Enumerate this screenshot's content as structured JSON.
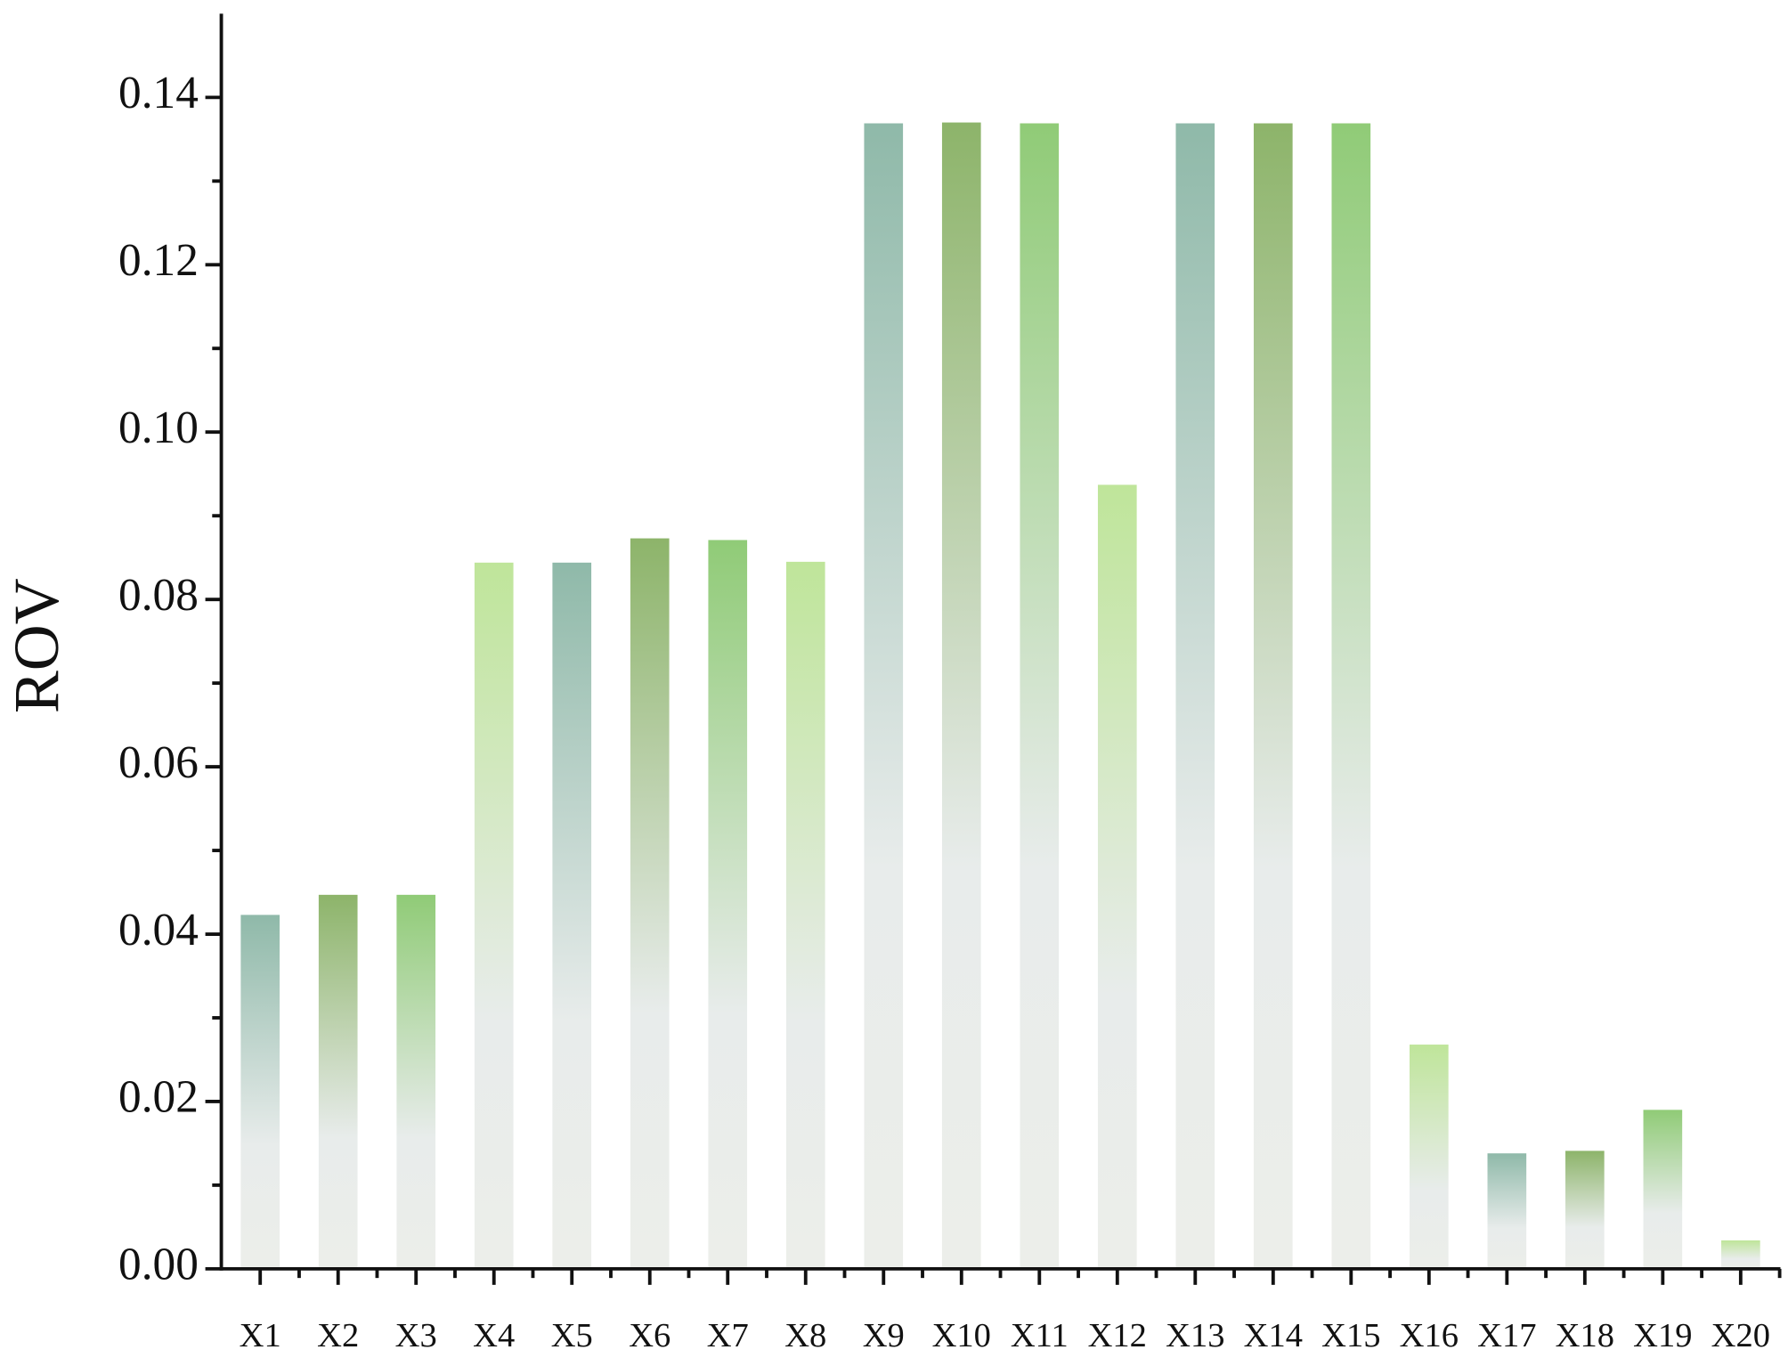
{
  "chart_data": {
    "type": "bar",
    "y_label": "ROV",
    "categories": [
      "X1",
      "X2",
      "X3",
      "X4",
      "X5",
      "X6",
      "X7",
      "X8",
      "X9",
      "X10",
      "X11",
      "X12",
      "X13",
      "X14",
      "X15",
      "X16",
      "X17",
      "X18",
      "X19",
      "X20"
    ],
    "values": [
      0.0423,
      0.0447,
      0.0447,
      0.0844,
      0.0844,
      0.0873,
      0.0871,
      0.0845,
      0.1369,
      0.137,
      0.1369,
      0.0937,
      0.1369,
      0.1369,
      0.1369,
      0.0268,
      0.0138,
      0.0141,
      0.019,
      0.0034
    ],
    "colors": [
      "#8fb9a9",
      "#8db46a",
      "#90cb77",
      "#bfe59a"
    ],
    "ylim": [
      0,
      0.15
    ],
    "yticks": [
      {
        "value": 0,
        "label": "0.00"
      },
      {
        "value": 0.02,
        "label": "0.02"
      },
      {
        "value": 0.04,
        "label": "0.04"
      },
      {
        "value": 0.06,
        "label": "0.06"
      },
      {
        "value": 0.08,
        "label": "0.08"
      },
      {
        "value": 0.1,
        "label": "0.10"
      },
      {
        "value": 0.12,
        "label": "0.12"
      },
      {
        "value": 0.14,
        "label": "0.14"
      }
    ],
    "y_minor_ticks": [
      0.01,
      0.03,
      0.05,
      0.07,
      0.09,
      0.11,
      0.13
    ],
    "grid": false
  }
}
